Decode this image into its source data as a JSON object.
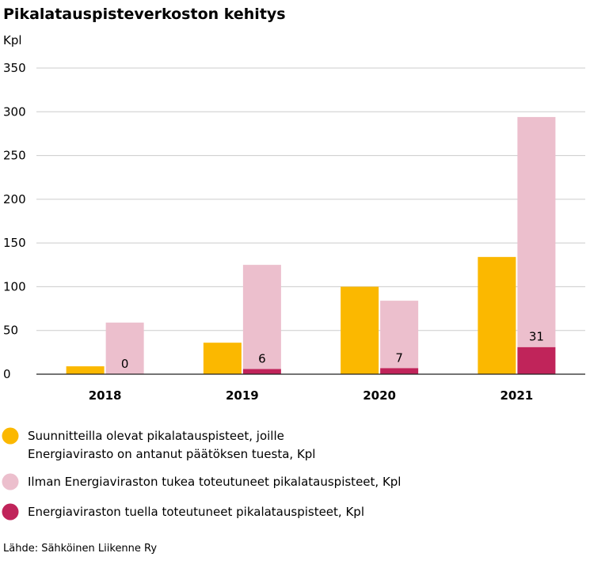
{
  "chart_data": {
    "type": "bar",
    "title": "Pikalatauspisteverkoston kehitys",
    "ylabel": "Kpl",
    "ylim": [
      0,
      350
    ],
    "yticks": [
      0,
      50,
      100,
      150,
      200,
      250,
      300,
      350
    ],
    "grid": true,
    "categories": [
      "2018",
      "2019",
      "2020",
      "2021"
    ],
    "series": [
      {
        "key": "planned",
        "name": "Suunnitteilla olevat pikalatauspisteet, joille Energiavirasto on antanut päätöksen tuesta, Kpl",
        "name_lines": [
          "Suunnitteilla olevat pikalatauspisteet, joille",
          "Energiavirasto on antanut päätöksen tuesta, Kpl"
        ],
        "values": [
          9,
          36,
          100,
          134
        ],
        "color": "#fbb800"
      },
      {
        "key": "unsupported",
        "name": "Ilman Energiaviraston tukea toteutuneet pikalatauspisteet, Kpl",
        "values": [
          59,
          119,
          77,
          263
        ],
        "color": "#ecbfcd"
      },
      {
        "key": "supported",
        "name": "Energiaviraston tuella toteutuneet pikalatauspisteet, Kpl",
        "values": [
          0,
          6,
          7,
          31
        ],
        "color": "#c0245a"
      }
    ],
    "stacks": [
      [
        "planned"
      ],
      [
        "supported",
        "unsupported"
      ]
    ],
    "data_labels": {
      "series": "supported",
      "values": [
        "0",
        "6",
        "7",
        "31"
      ]
    },
    "legend_position": "bottom",
    "source": "Lähde: Sähköinen Liikenne Ry"
  }
}
